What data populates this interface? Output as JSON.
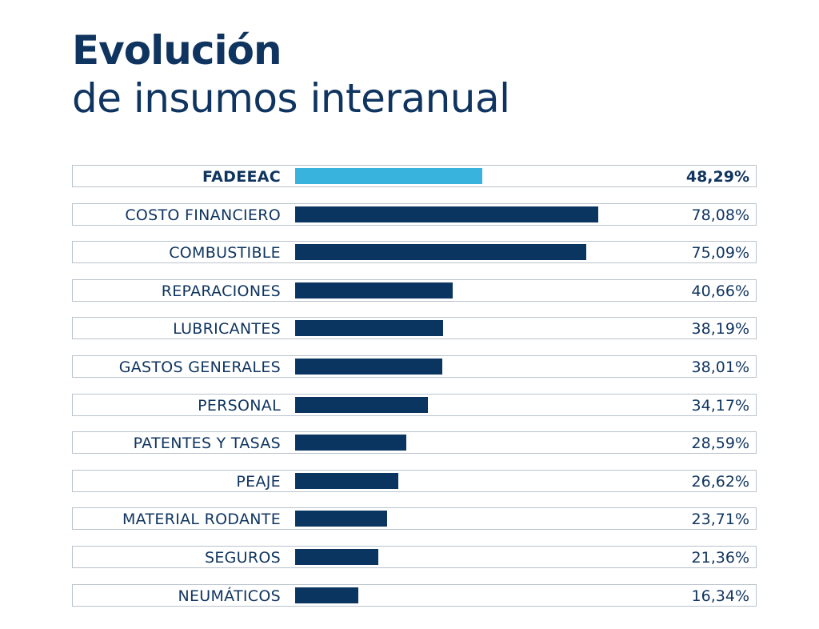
{
  "title": {
    "line1": "Evolución",
    "line2": "de insumos interanual"
  },
  "colors": {
    "highlight": "#38b3de",
    "bar": "#0a3560",
    "text": "#0f345f"
  },
  "chart_data": {
    "type": "bar",
    "orientation": "horizontal",
    "title": "Evolución de insumos interanual",
    "xlabel": "",
    "ylabel": "",
    "unit": "%",
    "xlim": [
      0,
      100
    ],
    "grid": false,
    "highlight": "FADEEAC",
    "categories": [
      "FADEEAC",
      "COSTO FINANCIERO",
      "COMBUSTIBLE",
      "REPARACIONES",
      "LUBRICANTES",
      "GASTOS GENERALES",
      "PERSONAL",
      "PATENTES Y TASAS",
      "PEAJE",
      "MATERIAL RODANTE",
      "SEGUROS",
      "NEUMÁTICOS"
    ],
    "values": [
      48.29,
      78.08,
      75.09,
      40.66,
      38.19,
      38.01,
      34.17,
      28.59,
      26.62,
      23.71,
      21.36,
      16.34
    ],
    "value_labels": [
      "48,29%",
      "78,08%",
      "75,09%",
      "40,66%",
      "38,19%",
      "38,01%",
      "34,17%",
      "28,59%",
      "26,62%",
      "23,71%",
      "21,36%",
      "16,34%"
    ]
  }
}
